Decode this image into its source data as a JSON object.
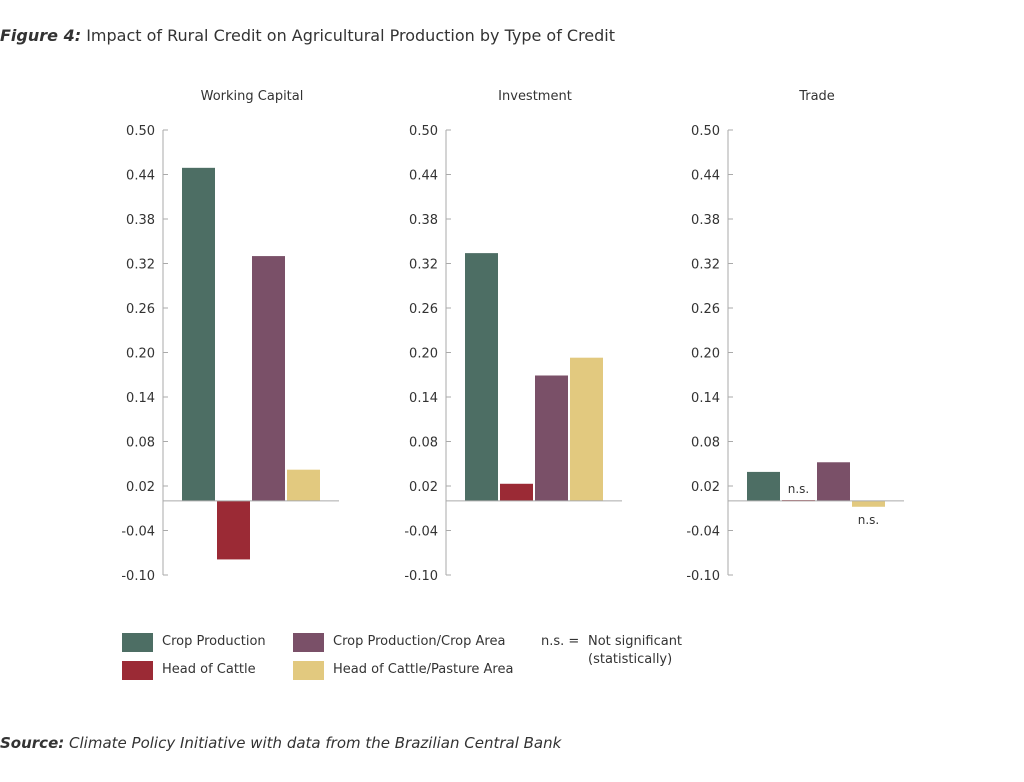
{
  "title_prefix": "Figure 4:",
  "title": "Impact of Rural Credit on Agricultural Production by Type of Credit",
  "source_prefix": "Source:",
  "source": "Climate Policy Initiative with data from the Brazilian Central Bank",
  "colors": {
    "Crop Production": "#4d6e64",
    "Head of Cattle": "#9b2a35",
    "Crop Production/Crop Area": "#7a5068",
    "Head of Cattle/Pasture Area": "#e2c97f"
  },
  "legend": {
    "items": [
      "Crop Production",
      "Head of Cattle",
      "Crop Production/Crop Area",
      "Head of Cattle/Pasture Area"
    ],
    "note_key": "n.s. =",
    "note_line1": "Not significant",
    "note_line2": "(statistically)"
  },
  "chart_data": [
    {
      "type": "bar",
      "title": "Working Capital",
      "categories": [
        "Crop Production",
        "Head of Cattle",
        "Crop Production/Crop Area",
        "Head of Cattle/Pasture Area"
      ],
      "values": [
        0.449,
        -0.079,
        0.33,
        0.042
      ],
      "annotations": [
        "",
        "",
        "",
        ""
      ],
      "ylim": [
        -0.1,
        0.5
      ],
      "yticks": [
        "0.50",
        "0.44",
        "0.38",
        "0.32",
        "0.26",
        "0.20",
        "0.14",
        "0.08",
        "0.02",
        "-0.04",
        "-0.10"
      ],
      "grid": false
    },
    {
      "type": "bar",
      "title": "Investment",
      "categories": [
        "Crop Production",
        "Head of Cattle",
        "Crop Production/Crop Area",
        "Head of Cattle/Pasture Area"
      ],
      "values": [
        0.334,
        0.023,
        0.169,
        0.193
      ],
      "annotations": [
        "",
        "",
        "",
        ""
      ],
      "ylim": [
        -0.1,
        0.5
      ],
      "yticks": [
        "0.50",
        "0.44",
        "0.38",
        "0.32",
        "0.26",
        "0.20",
        "0.14",
        "0.08",
        "0.02",
        "-0.04",
        "-0.10"
      ],
      "grid": false
    },
    {
      "type": "bar",
      "title": "Trade",
      "categories": [
        "Crop Production",
        "Head of Cattle",
        "Crop Production/Crop Area",
        "Head of Cattle/Pasture Area"
      ],
      "values": [
        0.039,
        0.001,
        0.052,
        -0.008
      ],
      "annotations": [
        "",
        "n.s.",
        "",
        "n.s."
      ],
      "ylim": [
        -0.1,
        0.5
      ],
      "yticks": [
        "0.50",
        "0.44",
        "0.38",
        "0.32",
        "0.26",
        "0.20",
        "0.14",
        "0.08",
        "0.02",
        "-0.04",
        "-0.10"
      ],
      "grid": false
    }
  ]
}
